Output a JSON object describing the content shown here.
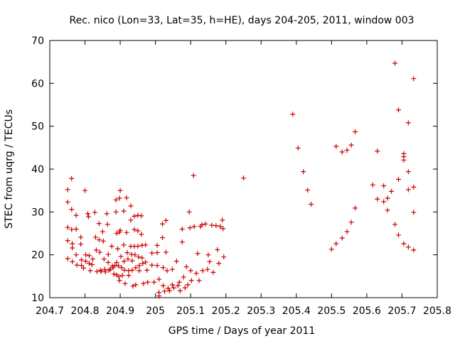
{
  "chart_data": {
    "type": "scatter",
    "title": "Rec. nico (Lon=33, Lat=35, h=HE), days 204-205, 2011, window 003",
    "xlabel": "GPS time / Days of year 2011",
    "ylabel": "STEC from uqrg / TECUs",
    "xlim": [
      204.7,
      205.8
    ],
    "ylim": [
      10,
      70
    ],
    "xticks": [
      "204.7",
      "204.8",
      "204.9",
      "205",
      "205.1",
      "205.2",
      "205.3",
      "205.4",
      "205.5",
      "205.6",
      "205.7",
      "205.8"
    ],
    "yticks": [
      "10",
      "20",
      "30",
      "40",
      "50",
      "60",
      "70"
    ],
    "grid": false,
    "marker": "+",
    "color": "#cc0000",
    "points": [
      [
        204.751,
        35.2
      ],
      [
        204.751,
        32.3
      ],
      [
        204.751,
        26.4
      ],
      [
        204.751,
        23.3
      ],
      [
        204.751,
        19.1
      ],
      [
        204.762,
        37.8
      ],
      [
        204.762,
        30.6
      ],
      [
        204.762,
        25.9
      ],
      [
        204.764,
        22.6
      ],
      [
        204.764,
        21.6
      ],
      [
        204.764,
        18.4
      ],
      [
        204.775,
        29.2
      ],
      [
        204.775,
        26.0
      ],
      [
        204.775,
        20.0
      ],
      [
        204.777,
        17.6
      ],
      [
        204.788,
        24.1
      ],
      [
        204.788,
        22.5
      ],
      [
        204.79,
        18.8
      ],
      [
        204.79,
        17.5
      ],
      [
        204.796,
        16.9
      ],
      [
        204.8,
        35.0
      ],
      [
        204.802,
        20.0
      ],
      [
        204.802,
        18.5
      ],
      [
        204.808,
        29.6
      ],
      [
        204.81,
        28.9
      ],
      [
        204.812,
        19.8
      ],
      [
        204.812,
        18.0
      ],
      [
        204.815,
        16.3
      ],
      [
        204.82,
        17.7
      ],
      [
        204.822,
        19.0
      ],
      [
        204.828,
        29.9
      ],
      [
        204.83,
        24.1
      ],
      [
        204.832,
        21.1
      ],
      [
        204.834,
        16.1
      ],
      [
        204.84,
        27.3
      ],
      [
        204.84,
        23.5
      ],
      [
        204.842,
        20.6
      ],
      [
        204.844,
        16.4
      ],
      [
        204.846,
        16.1
      ],
      [
        204.85,
        25.4
      ],
      [
        204.852,
        23.2
      ],
      [
        204.854,
        19.0
      ],
      [
        204.856,
        16.6
      ],
      [
        204.858,
        16.0
      ],
      [
        204.862,
        29.6
      ],
      [
        204.864,
        27.1
      ],
      [
        204.866,
        20.1
      ],
      [
        204.866,
        18.2
      ],
      [
        204.868,
        16.4
      ],
      [
        204.872,
        16.6
      ],
      [
        204.876,
        22.0
      ],
      [
        204.878,
        17.4
      ],
      [
        204.88,
        17.0
      ],
      [
        204.882,
        15.5
      ],
      [
        204.885,
        17.5
      ],
      [
        204.888,
        32.8
      ],
      [
        204.888,
        30.0
      ],
      [
        204.89,
        25.0
      ],
      [
        204.89,
        18.2
      ],
      [
        204.89,
        15.3
      ],
      [
        204.893,
        21.4
      ],
      [
        204.895,
        17.4
      ],
      [
        204.896,
        14.9
      ],
      [
        204.898,
        33.2
      ],
      [
        204.898,
        25.3
      ],
      [
        204.898,
        14.0
      ],
      [
        204.9,
        35.0
      ],
      [
        204.9,
        25.7
      ],
      [
        204.902,
        19.6
      ],
      [
        204.904,
        17.0
      ],
      [
        204.906,
        15.2
      ],
      [
        204.91,
        30.2
      ],
      [
        204.91,
        22.3
      ],
      [
        204.911,
        18.5
      ],
      [
        204.912,
        16.4
      ],
      [
        204.914,
        13.3
      ],
      [
        204.918,
        33.3
      ],
      [
        204.918,
        25.2
      ],
      [
        204.92,
        20.5
      ],
      [
        204.922,
        19.0
      ],
      [
        204.924,
        16.3
      ],
      [
        204.924,
        15.2
      ],
      [
        204.93,
        31.4
      ],
      [
        204.93,
        28.1
      ],
      [
        204.93,
        22.0
      ],
      [
        204.932,
        20.1
      ],
      [
        204.934,
        18.6
      ],
      [
        204.934,
        16.4
      ],
      [
        204.936,
        12.7
      ],
      [
        204.94,
        29.0
      ],
      [
        204.94,
        25.9
      ],
      [
        204.94,
        22.0
      ],
      [
        204.942,
        20.0
      ],
      [
        204.944,
        17.0
      ],
      [
        204.944,
        13.0
      ],
      [
        204.95,
        29.2
      ],
      [
        204.95,
        25.6
      ],
      [
        204.95,
        22.0
      ],
      [
        204.952,
        19.5
      ],
      [
        204.954,
        17.5
      ],
      [
        204.954,
        16.3
      ],
      [
        204.96,
        29.1
      ],
      [
        204.96,
        24.8
      ],
      [
        204.962,
        22.2
      ],
      [
        204.962,
        19.3
      ],
      [
        204.964,
        18.0
      ],
      [
        204.966,
        13.3
      ],
      [
        204.972,
        22.3
      ],
      [
        204.972,
        18.3
      ],
      [
        204.976,
        16.4
      ],
      [
        204.978,
        13.6
      ],
      [
        204.99,
        20.4
      ],
      [
        204.99,
        17.6
      ],
      [
        204.996,
        13.6
      ],
      [
        205.005,
        22.2
      ],
      [
        205.005,
        20.5
      ],
      [
        205.005,
        17.5
      ],
      [
        205.01,
        14.3
      ],
      [
        205.01,
        11.2
      ],
      [
        205.01,
        10.4
      ],
      [
        205.02,
        27.2
      ],
      [
        205.02,
        24.0
      ],
      [
        205.022,
        17.0
      ],
      [
        205.022,
        12.8
      ],
      [
        205.026,
        11.5
      ],
      [
        205.03,
        28.0
      ],
      [
        205.03,
        20.6
      ],
      [
        205.033,
        16.3
      ],
      [
        205.036,
        12.2
      ],
      [
        205.04,
        11.6
      ],
      [
        205.048,
        16.6
      ],
      [
        205.048,
        13.0
      ],
      [
        205.052,
        12.3
      ],
      [
        205.06,
        18.5
      ],
      [
        205.064,
        12.8
      ],
      [
        205.068,
        13.6
      ],
      [
        205.07,
        11.6
      ],
      [
        205.076,
        26.0
      ],
      [
        205.076,
        23.0
      ],
      [
        205.08,
        14.8
      ],
      [
        205.084,
        12.3
      ],
      [
        205.088,
        17.2
      ],
      [
        205.092,
        13.0
      ],
      [
        205.096,
        30.0
      ],
      [
        205.098,
        26.3
      ],
      [
        205.1,
        16.3
      ],
      [
        205.102,
        14.0
      ],
      [
        205.108,
        38.5
      ],
      [
        205.11,
        26.6
      ],
      [
        205.116,
        15.7
      ],
      [
        205.12,
        20.3
      ],
      [
        205.124,
        14.0
      ],
      [
        205.128,
        26.6
      ],
      [
        205.132,
        27.0
      ],
      [
        205.134,
        16.3
      ],
      [
        205.142,
        27.2
      ],
      [
        205.148,
        16.6
      ],
      [
        205.15,
        20.0
      ],
      [
        205.154,
        18.4
      ],
      [
        205.16,
        26.9
      ],
      [
        205.164,
        15.9
      ],
      [
        205.172,
        26.8
      ],
      [
        205.176,
        21.2
      ],
      [
        205.18,
        18.0
      ],
      [
        205.184,
        26.6
      ],
      [
        205.19,
        28.1
      ],
      [
        205.192,
        26.1
      ],
      [
        205.194,
        19.5
      ],
      [
        205.25,
        37.9
      ],
      [
        205.39,
        52.8
      ],
      [
        205.405,
        44.9
      ],
      [
        205.42,
        39.4
      ],
      [
        205.432,
        35.1
      ],
      [
        205.442,
        31.8
      ],
      [
        205.5,
        21.3
      ],
      [
        205.513,
        45.3
      ],
      [
        205.513,
        22.6
      ],
      [
        205.53,
        44.0
      ],
      [
        205.53,
        23.9
      ],
      [
        205.544,
        44.4
      ],
      [
        205.544,
        25.4
      ],
      [
        205.556,
        45.6
      ],
      [
        205.556,
        27.6
      ],
      [
        205.567,
        48.7
      ],
      [
        205.567,
        30.9
      ],
      [
        205.617,
        36.3
      ],
      [
        205.63,
        44.2
      ],
      [
        205.63,
        33.0
      ],
      [
        205.648,
        36.1
      ],
      [
        205.648,
        32.4
      ],
      [
        205.659,
        30.4
      ],
      [
        205.659,
        33.2
      ],
      [
        205.67,
        34.8
      ],
      [
        205.68,
        64.7
      ],
      [
        205.68,
        27.1
      ],
      [
        205.69,
        53.8
      ],
      [
        205.69,
        37.6
      ],
      [
        205.69,
        24.6
      ],
      [
        205.705,
        43.6
      ],
      [
        205.705,
        42.9
      ],
      [
        205.705,
        42.1
      ],
      [
        205.705,
        22.6
      ],
      [
        205.718,
        50.8
      ],
      [
        205.718,
        39.4
      ],
      [
        205.718,
        35.2
      ],
      [
        205.718,
        21.8
      ],
      [
        205.733,
        61.1
      ],
      [
        205.733,
        35.8
      ],
      [
        205.733,
        29.9
      ],
      [
        205.733,
        21.1
      ]
    ]
  }
}
